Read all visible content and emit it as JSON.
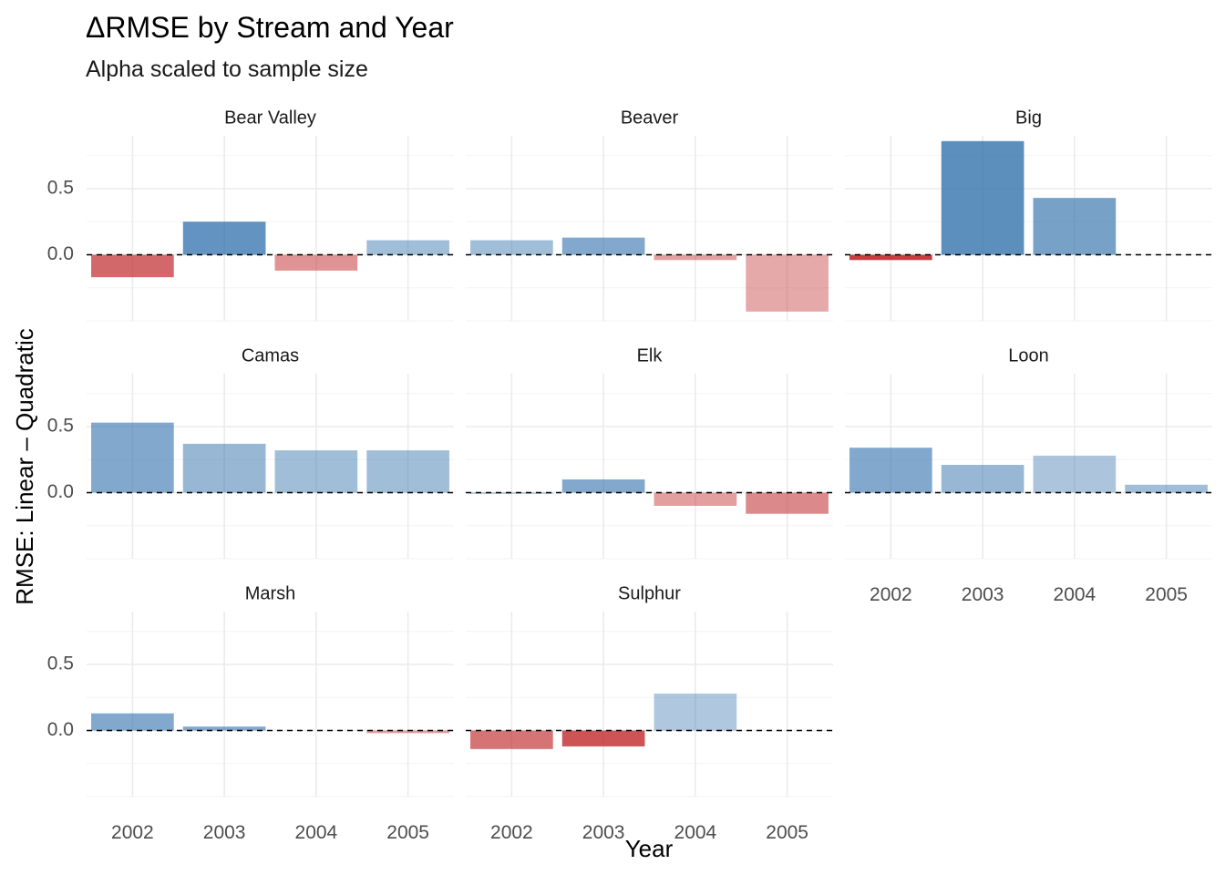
{
  "chart_data": {
    "type": "bar",
    "title": "ΔRMSE by Stream and Year",
    "subtitle": "Alpha scaled to sample size",
    "xlabel": "Year",
    "ylabel": "RMSE: Linear – Quadratic",
    "categories": [
      "2002",
      "2003",
      "2004",
      "2005"
    ],
    "y_ticks": [
      "0.0",
      "0.5"
    ],
    "y_tick_values": [
      0.0,
      0.5
    ],
    "ylim": [
      -0.5,
      0.9
    ],
    "grid": true,
    "reference_line": 0,
    "colors": {
      "positive": "#2f6fab",
      "negative": "#c0282b"
    },
    "facets": [
      {
        "name": "Bear Valley",
        "values": [
          -0.17,
          0.25,
          -0.12,
          0.11
        ],
        "alpha": [
          0.7,
          0.75,
          0.5,
          0.45
        ]
      },
      {
        "name": "Beaver",
        "values": [
          0.11,
          0.13,
          -0.04,
          -0.43
        ],
        "alpha": [
          0.45,
          0.6,
          0.45,
          0.4
        ]
      },
      {
        "name": "Big",
        "values": [
          -0.04,
          0.86,
          0.43,
          null
        ],
        "alpha": [
          0.9,
          0.78,
          0.65,
          0
        ]
      },
      {
        "name": "Camas",
        "values": [
          0.53,
          0.37,
          0.32,
          0.32
        ],
        "alpha": [
          0.6,
          0.5,
          0.45,
          0.45
        ]
      },
      {
        "name": "Elk",
        "values": [
          0.0,
          0.1,
          -0.1,
          -0.16
        ],
        "alpha": [
          0.5,
          0.6,
          0.45,
          0.55
        ]
      },
      {
        "name": "Loon",
        "values": [
          0.34,
          0.21,
          0.28,
          0.06
        ],
        "alpha": [
          0.6,
          0.5,
          0.4,
          0.45
        ]
      },
      {
        "name": "Marsh",
        "values": [
          0.13,
          0.03,
          null,
          -0.02
        ],
        "alpha": [
          0.6,
          0.6,
          0,
          0.45
        ]
      },
      {
        "name": "Sulphur",
        "values": [
          -0.14,
          -0.12,
          0.28,
          null
        ],
        "alpha": [
          0.65,
          0.8,
          0.38,
          0
        ]
      }
    ]
  }
}
